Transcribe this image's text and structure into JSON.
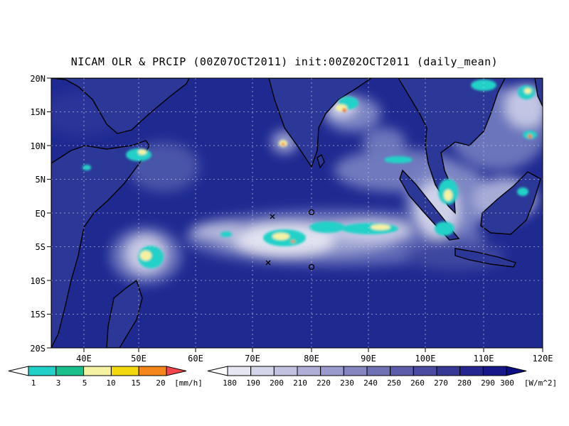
{
  "title": "NICAM OLR & PRCIP (00Z07OCT2011) init:00Z02OCT2011 (daily_mean)",
  "lat_labels": [
    "20N",
    "15N",
    "10N",
    "5N",
    "EQ",
    "5S",
    "10S",
    "15S",
    "20S"
  ],
  "lon_labels": [
    "40E",
    "50E",
    "60E",
    "70E",
    "80E",
    "90E",
    "100E",
    "110E",
    "120E"
  ],
  "precip_colorbar": {
    "ticks": [
      "1",
      "3",
      "5",
      "10",
      "15",
      "20"
    ],
    "unit": "[mm/h]",
    "colors": [
      "#ffffff",
      "#21d1c8",
      "#1ac08c",
      "#f6f2a4",
      "#f3d80e",
      "#f4861c",
      "#f2454e"
    ]
  },
  "olr_colorbar": {
    "ticks": [
      "180",
      "190",
      "200",
      "210",
      "220",
      "230",
      "240",
      "250",
      "260",
      "270",
      "280",
      "290",
      "300"
    ],
    "unit": "[W/m^2]",
    "colors": [
      "#ffffff",
      "#e6e6f2",
      "#d5d5ea",
      "#c2c2e0",
      "#aeaed6",
      "#9a9acc",
      "#8585c0",
      "#7070b4",
      "#5c5caa",
      "#4a4aa0",
      "#373796",
      "#262690",
      "#17178a",
      "#0c0c84"
    ]
  },
  "map_colors": {
    "ocean": "#1f2a91",
    "cloud": "#ffffff"
  }
}
